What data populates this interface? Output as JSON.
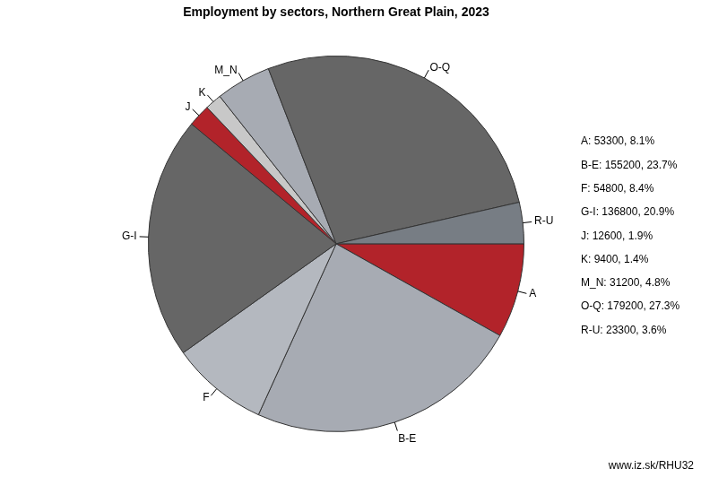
{
  "chart_data": {
    "type": "pie",
    "title": "Employment by sectors, Northern Great Plain, 2023",
    "categories": [
      "A",
      "B-E",
      "F",
      "G-I",
      "J",
      "K",
      "M_N",
      "O-Q",
      "R-U"
    ],
    "values": [
      53300,
      155200,
      54800,
      136800,
      12600,
      9400,
      31200,
      179200,
      23300
    ],
    "value_labels": [
      "A: 53300, 8.1%",
      "B-E: 155200, 23.7%",
      "F: 54800, 8.4%",
      "G-I: 136800, 20.9%",
      "J: 12600, 1.9%",
      "K: 9400, 1.4%",
      "M_N: 31200, 4.8%",
      "O-Q: 179200, 27.3%",
      "R-U: 23300, 3.6%"
    ],
    "colors": [
      "#b2232a",
      "#a7abb3",
      "#b4b8bf",
      "#666666",
      "#b2232a",
      "#c8c8c8",
      "#a7abb3",
      "#666666",
      "#777d84"
    ],
    "footer": "www.iz.sk/RHU32"
  }
}
